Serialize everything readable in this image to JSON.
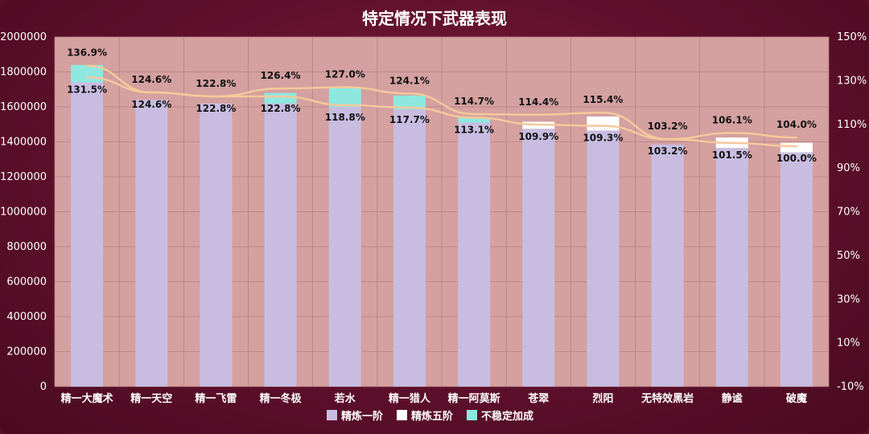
{
  "chart_data": {
    "type": "bar",
    "title": "特定情况下武器表现",
    "categories": [
      "精一大魔术",
      "精一天空",
      "精一飞雷",
      "精一冬极",
      "若水",
      "精一猎人",
      "精一阿莫斯",
      "苍翠",
      "烈阳",
      "无特效黑岩",
      "静谧",
      "破魔"
    ],
    "series": [
      {
        "name": "精炼一阶",
        "color": "#c8bde0",
        "values": [
          1740000,
          1640000,
          1620000,
          1620000,
          1600000,
          1585000,
          1510000,
          1475000,
          1465000,
          1385000,
          1365000,
          1340000
        ]
      },
      {
        "name": "精炼五阶",
        "color": "#ffffff",
        "values": [
          0,
          0,
          0,
          0,
          0,
          0,
          0,
          40000,
          80000,
          0,
          60000,
          55000
        ]
      },
      {
        "name": "不稳定加成",
        "color": "#8ee8e0",
        "values": [
          100000,
          0,
          0,
          60000,
          110000,
          80000,
          30000,
          0,
          0,
          0,
          0,
          0
        ]
      }
    ],
    "lines": [
      {
        "values": [
          136.9,
          124.6,
          122.8,
          126.4,
          127.0,
          124.1,
          114.7,
          114.4,
          115.4,
          103.2,
          106.1,
          104.0
        ],
        "color": "#f6c89a"
      },
      {
        "values": [
          131.5,
          124.6,
          122.8,
          122.8,
          118.8,
          117.7,
          113.1,
          109.9,
          109.3,
          103.2,
          101.5,
          100.0
        ],
        "color": "#f6c89a"
      }
    ],
    "upper_labels": [
      "136.9%",
      "124.6%",
      "122.8%",
      "126.4%",
      "127.0%",
      "124.1%",
      "114.7%",
      "114.4%",
      "115.4%",
      "103.2%",
      "106.1%",
      "104.0%"
    ],
    "lower_labels": [
      "131.5%",
      "124.6%",
      "122.8%",
      "122.8%",
      "118.8%",
      "117.7%",
      "113.1%",
      "109.9%",
      "109.3%",
      "103.2%",
      "101.5%",
      "100.0%"
    ],
    "ylim": [
      0,
      2000000
    ],
    "yticks": [
      "0",
      "200000",
      "400000",
      "600000",
      "800000",
      "1000000",
      "1200000",
      "1400000",
      "1600000",
      "1800000",
      "2000000"
    ],
    "y2lim": [
      -10,
      150
    ],
    "y2ticks": [
      "-10%",
      "10%",
      "30%",
      "50%",
      "70%",
      "90%",
      "110%",
      "130%",
      "150%"
    ],
    "legend_position": "bottom",
    "plot_background": "#d4a0a0",
    "grid": true
  }
}
